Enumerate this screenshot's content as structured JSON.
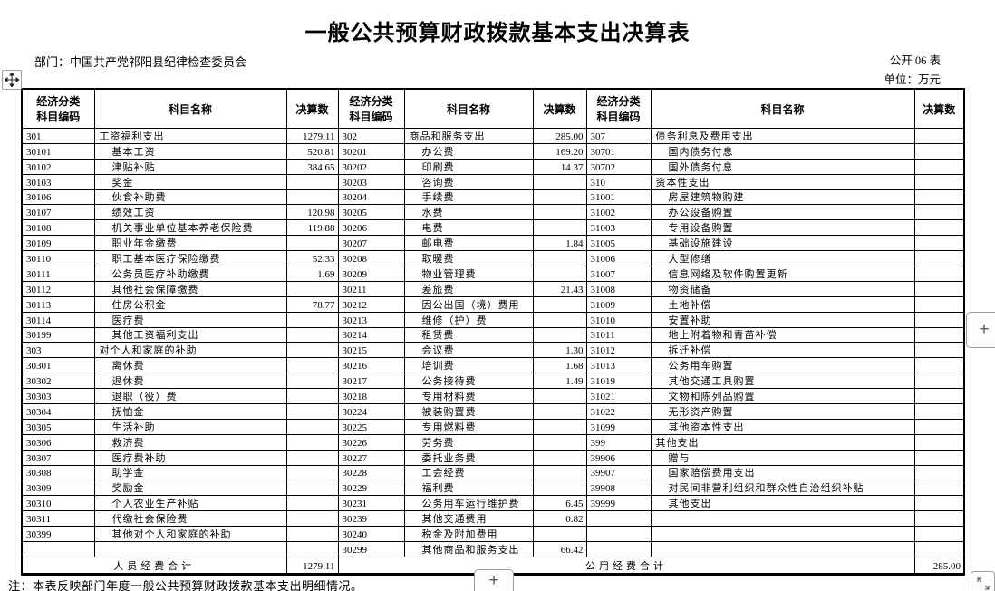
{
  "page": {
    "title": "一般公共预算财政拨款基本支出决算表",
    "department": "部门：中国共产党祁阳县纪律检查委员会",
    "table_no": "公开 06 表",
    "unit": "单位：万元",
    "note": "注：本表反映部门年度一般公共预算财政拨款基本支出明细情况。"
  },
  "header": {
    "code_l1": "经济分类",
    "code_l2": "科目编码",
    "name": "科目名称",
    "value": "决算数"
  },
  "groups": [
    {
      "rows": [
        {
          "code": "301",
          "name": "工资福利支出",
          "value": "1279.11"
        },
        {
          "code": "30101",
          "name": "基本工资",
          "value": "520.81"
        },
        {
          "code": "30102",
          "name": "津贴补贴",
          "value": "384.65"
        },
        {
          "code": "30103",
          "name": "奖金",
          "value": ""
        },
        {
          "code": "30106",
          "name": "伙食补助费",
          "value": ""
        },
        {
          "code": "30107",
          "name": "绩效工资",
          "value": "120.98"
        },
        {
          "code": "30108",
          "name": "机关事业单位基本养老保险费",
          "value": "119.88"
        },
        {
          "code": "30109",
          "name": "职业年金缴费",
          "value": ""
        },
        {
          "code": "30110",
          "name": "职工基本医疗保险缴费",
          "value": "52.33"
        },
        {
          "code": "30111",
          "name": "公务员医疗补助缴费",
          "value": "1.69"
        },
        {
          "code": "30112",
          "name": "其他社会保障缴费",
          "value": ""
        },
        {
          "code": "30113",
          "name": "住房公积金",
          "value": "78.77"
        },
        {
          "code": "30114",
          "name": "医疗费",
          "value": ""
        },
        {
          "code": "30199",
          "name": "其他工资福利支出",
          "value": ""
        },
        {
          "code": "303",
          "name": "对个人和家庭的补助",
          "value": ""
        },
        {
          "code": "30301",
          "name": "离休费",
          "value": ""
        },
        {
          "code": "30302",
          "name": "退休费",
          "value": ""
        },
        {
          "code": "30303",
          "name": "退职（役）费",
          "value": ""
        },
        {
          "code": "30304",
          "name": "抚恤金",
          "value": ""
        },
        {
          "code": "30305",
          "name": "生活补助",
          "value": ""
        },
        {
          "code": "30306",
          "name": "救济费",
          "value": ""
        },
        {
          "code": "30307",
          "name": "医疗费补助",
          "value": ""
        },
        {
          "code": "30308",
          "name": "助学金",
          "value": ""
        },
        {
          "code": "30309",
          "name": "奖励金",
          "value": ""
        },
        {
          "code": "30310",
          "name": "个人农业生产补贴",
          "value": ""
        },
        {
          "code": "30311",
          "name": "代缴社会保险费",
          "value": ""
        },
        {
          "code": "30399",
          "name": "其他对个人和家庭的补助",
          "value": ""
        },
        {
          "code": "",
          "name": "",
          "value": ""
        }
      ]
    },
    {
      "rows": [
        {
          "code": "302",
          "name": "商品和服务支出",
          "value": "285.00"
        },
        {
          "code": "30201",
          "name": "办公费",
          "value": "169.20"
        },
        {
          "code": "30202",
          "name": "印刷费",
          "value": "14.37"
        },
        {
          "code": "30203",
          "name": "咨询费",
          "value": ""
        },
        {
          "code": "30204",
          "name": "手续费",
          "value": ""
        },
        {
          "code": "30205",
          "name": "水费",
          "value": ""
        },
        {
          "code": "30206",
          "name": "电费",
          "value": ""
        },
        {
          "code": "30207",
          "name": "邮电费",
          "value": "1.84"
        },
        {
          "code": "30208",
          "name": "取暖费",
          "value": ""
        },
        {
          "code": "30209",
          "name": "物业管理费",
          "value": ""
        },
        {
          "code": "30211",
          "name": "差旅费",
          "value": "21.43"
        },
        {
          "code": "30212",
          "name": "因公出国（境）费用",
          "value": ""
        },
        {
          "code": "30213",
          "name": "维修（护）费",
          "value": ""
        },
        {
          "code": "30214",
          "name": "租赁费",
          "value": ""
        },
        {
          "code": "30215",
          "name": "会议费",
          "value": "1.30"
        },
        {
          "code": "30216",
          "name": "培训费",
          "value": "1.68"
        },
        {
          "code": "30217",
          "name": "公务接待费",
          "value": "1.49"
        },
        {
          "code": "30218",
          "name": "专用材料费",
          "value": ""
        },
        {
          "code": "30224",
          "name": "被装购置费",
          "value": ""
        },
        {
          "code": "30225",
          "name": "专用燃料费",
          "value": ""
        },
        {
          "code": "30226",
          "name": "劳务费",
          "value": ""
        },
        {
          "code": "30227",
          "name": "委托业务费",
          "value": ""
        },
        {
          "code": "30228",
          "name": "工会经费",
          "value": ""
        },
        {
          "code": "30229",
          "name": "福利费",
          "value": ""
        },
        {
          "code": "30231",
          "name": "公务用车运行维护费",
          "value": "6.45"
        },
        {
          "code": "30239",
          "name": "其他交通费用",
          "value": "0.82"
        },
        {
          "code": "30240",
          "name": "税金及附加费用",
          "value": ""
        },
        {
          "code": "30299",
          "name": "其他商品和服务支出",
          "value": "66.42"
        }
      ]
    },
    {
      "rows": [
        {
          "code": "307",
          "name": "债务利息及费用支出",
          "value": ""
        },
        {
          "code": "30701",
          "name": "国内债务付息",
          "value": ""
        },
        {
          "code": "30702",
          "name": "国外债务付息",
          "value": ""
        },
        {
          "code": "310",
          "name": "资本性支出",
          "value": ""
        },
        {
          "code": "31001",
          "name": "房屋建筑物购建",
          "value": ""
        },
        {
          "code": "31002",
          "name": "办公设备购置",
          "value": ""
        },
        {
          "code": "31003",
          "name": "专用设备购置",
          "value": ""
        },
        {
          "code": "31005",
          "name": "基础设施建设",
          "value": ""
        },
        {
          "code": "31006",
          "name": "大型修缮",
          "value": ""
        },
        {
          "code": "31007",
          "name": "信息网络及软件购置更新",
          "value": ""
        },
        {
          "code": "31008",
          "name": "物资储备",
          "value": ""
        },
        {
          "code": "31009",
          "name": "土地补偿",
          "value": ""
        },
        {
          "code": "31010",
          "name": "安置补助",
          "value": ""
        },
        {
          "code": "31011",
          "name": "地上附着物和青苗补偿",
          "value": ""
        },
        {
          "code": "31012",
          "name": "拆迁补偿",
          "value": ""
        },
        {
          "code": "31013",
          "name": "公务用车购置",
          "value": ""
        },
        {
          "code": "31019",
          "name": "其他交通工具购置",
          "value": ""
        },
        {
          "code": "31021",
          "name": "文物和陈列品购置",
          "value": ""
        },
        {
          "code": "31022",
          "name": "无形资产购置",
          "value": ""
        },
        {
          "code": "31099",
          "name": "其他资本性支出",
          "value": ""
        },
        {
          "code": "399",
          "name": "其他支出",
          "value": ""
        },
        {
          "code": "39906",
          "name": "赠与",
          "value": ""
        },
        {
          "code": "39907",
          "name": "国家赔偿费用支出",
          "value": ""
        },
        {
          "code": "39908",
          "name": "对民间非营利组织和群众性自治组织补贴",
          "value": ""
        },
        {
          "code": "39999",
          "name": "其他支出",
          "value": ""
        },
        {
          "code": "",
          "name": "",
          "value": ""
        },
        {
          "code": "",
          "name": "",
          "value": ""
        },
        {
          "code": "",
          "name": "",
          "value": ""
        }
      ]
    }
  ],
  "totals": {
    "personnel_label": "人员经费合计",
    "personnel_value": "1279.11",
    "public_label": "公用经费合计",
    "public_value": "285.00"
  },
  "controls": {
    "plus": "+"
  }
}
